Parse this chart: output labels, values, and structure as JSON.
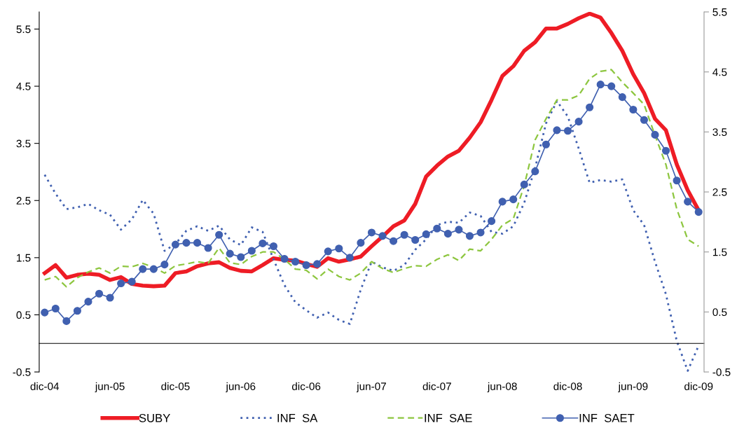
{
  "chart_data": {
    "type": "line",
    "categories": [
      "dic-04",
      null,
      null,
      null,
      null,
      null,
      "jun-05",
      null,
      null,
      null,
      null,
      null,
      "dic-05",
      null,
      null,
      null,
      null,
      null,
      "jun-06",
      null,
      null,
      null,
      null,
      null,
      "dic-06",
      null,
      null,
      null,
      null,
      null,
      "jun-07",
      null,
      null,
      null,
      null,
      null,
      "dic-07",
      null,
      null,
      null,
      null,
      null,
      "jun-08",
      null,
      null,
      null,
      null,
      null,
      "dic-08",
      null,
      null,
      null,
      null,
      null,
      "jun-09",
      null,
      null,
      null,
      null,
      null,
      "dic-09"
    ],
    "series": [
      {
        "name": "SUBY",
        "color": "#ee1c25",
        "line_style": "solid",
        "marker": "none",
        "values": [
          1.23,
          1.37,
          1.15,
          1.2,
          1.22,
          1.2,
          1.11,
          1.16,
          1.04,
          1.01,
          1.0,
          1.01,
          1.23,
          1.26,
          1.35,
          1.4,
          1.42,
          1.32,
          1.27,
          1.26,
          1.37,
          1.49,
          1.46,
          1.45,
          1.39,
          1.34,
          1.49,
          1.43,
          1.47,
          1.52,
          1.7,
          1.87,
          2.05,
          2.15,
          2.44,
          2.92,
          3.11,
          3.27,
          3.37,
          3.6,
          3.87,
          4.26,
          4.68,
          4.85,
          5.12,
          5.27,
          5.51,
          5.51,
          5.59,
          5.69,
          5.77,
          5.7,
          5.43,
          5.12,
          4.71,
          4.38,
          3.93,
          3.73,
          3.13,
          2.68,
          2.33
        ]
      },
      {
        "name": "INF  SA",
        "color": "#4060b0",
        "line_style": "dotted",
        "marker": "none",
        "values": [
          2.95,
          2.62,
          2.35,
          2.38,
          2.44,
          2.33,
          2.25,
          1.99,
          2.17,
          2.51,
          2.27,
          1.62,
          1.74,
          1.97,
          2.05,
          1.97,
          2.06,
          1.82,
          1.72,
          2.03,
          1.95,
          1.47,
          1.02,
          0.72,
          0.58,
          0.45,
          0.54,
          0.41,
          0.34,
          0.94,
          1.43,
          1.33,
          1.27,
          1.37,
          1.64,
          1.82,
          2.07,
          2.13,
          2.11,
          2.29,
          2.23,
          1.95,
          1.92,
          2.05,
          2.46,
          3.07,
          3.85,
          4.24,
          3.97,
          3.41,
          2.81,
          2.86,
          2.83,
          2.87,
          2.33,
          2.07,
          1.43,
          0.86,
          0.04,
          -0.48,
          -0.04
        ]
      },
      {
        "name": "INF  SAE",
        "color": "#8dc63f",
        "line_style": "dashed",
        "marker": "none",
        "values": [
          1.11,
          1.17,
          0.99,
          1.15,
          1.25,
          1.32,
          1.23,
          1.35,
          1.34,
          1.4,
          1.33,
          1.23,
          1.36,
          1.39,
          1.43,
          1.4,
          1.67,
          1.41,
          1.38,
          1.52,
          1.6,
          1.6,
          1.47,
          1.3,
          1.28,
          1.13,
          1.3,
          1.17,
          1.11,
          1.23,
          1.43,
          1.31,
          1.24,
          1.31,
          1.36,
          1.35,
          1.47,
          1.55,
          1.45,
          1.65,
          1.62,
          1.82,
          2.07,
          2.18,
          2.76,
          3.56,
          3.93,
          4.26,
          4.26,
          4.34,
          4.63,
          4.76,
          4.79,
          4.57,
          4.38,
          4.18,
          3.64,
          3.13,
          2.35,
          1.82,
          1.7
        ]
      },
      {
        "name": "INF  SAET",
        "color": "#4060b0",
        "line_style": "solid",
        "marker": "circle",
        "values": [
          0.54,
          0.61,
          0.39,
          0.57,
          0.73,
          0.87,
          0.8,
          1.05,
          1.08,
          1.3,
          1.3,
          1.38,
          1.73,
          1.76,
          1.76,
          1.67,
          1.9,
          1.57,
          1.51,
          1.62,
          1.75,
          1.7,
          1.48,
          1.43,
          1.37,
          1.39,
          1.61,
          1.66,
          1.5,
          1.76,
          1.94,
          1.88,
          1.79,
          1.9,
          1.81,
          1.91,
          2.01,
          1.92,
          1.99,
          1.88,
          1.94,
          2.14,
          2.48,
          2.52,
          2.78,
          3.01,
          3.48,
          3.73,
          3.72,
          3.88,
          4.13,
          4.53,
          4.5,
          4.31,
          4.09,
          3.91,
          3.65,
          3.37,
          2.85,
          2.48,
          2.3
        ]
      }
    ],
    "ylim": [
      -0.5,
      5.8
    ],
    "yticks": [
      -0.5,
      0.5,
      1.5,
      2.5,
      3.5,
      4.5,
      5.5
    ],
    "y2lim": [
      -0.5,
      5.5
    ],
    "y2ticks": [
      -0.5,
      0.5,
      1.5,
      2.5,
      3.5,
      4.5,
      5.5
    ],
    "grid": false,
    "legend": "bottom"
  }
}
